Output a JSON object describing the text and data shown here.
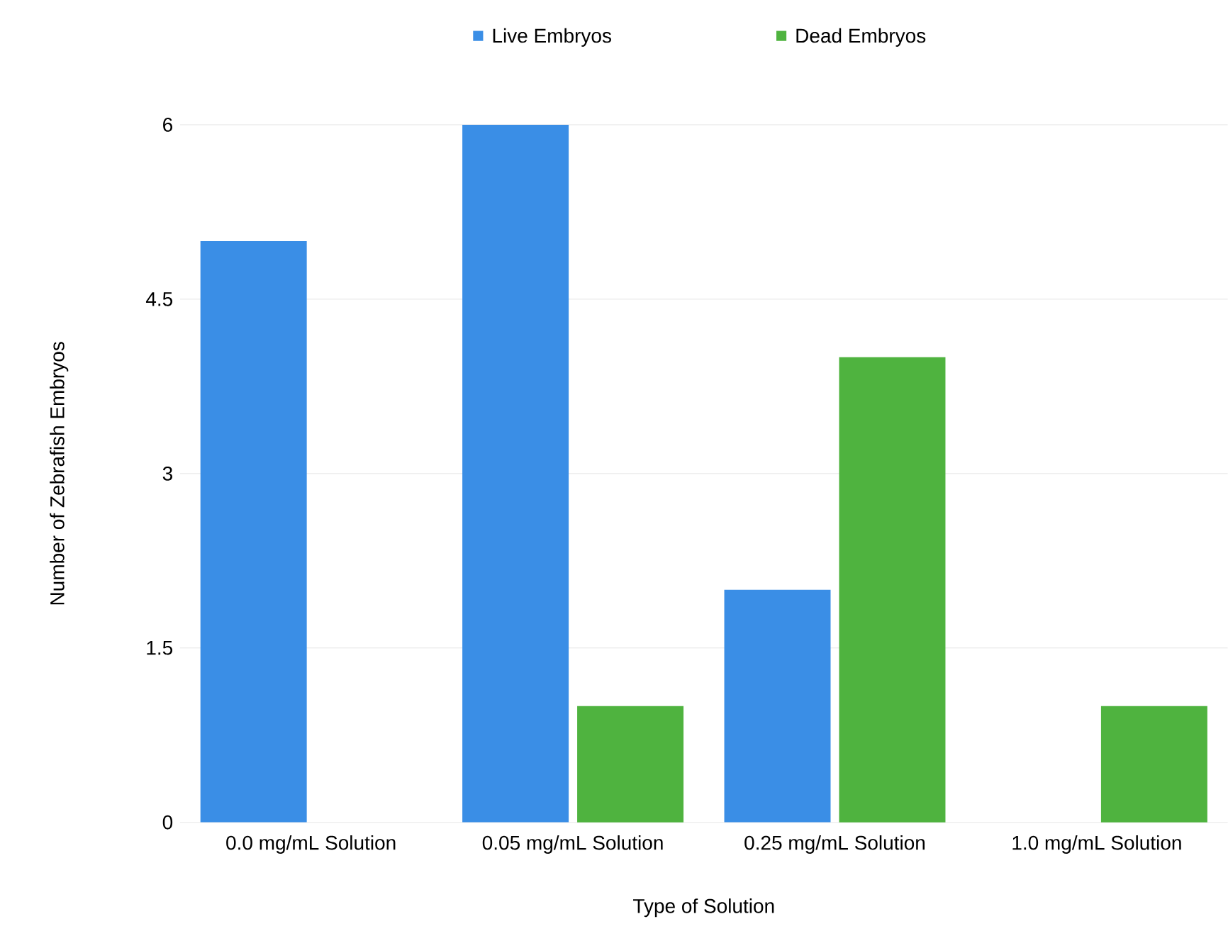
{
  "chart_data": {
    "type": "bar",
    "xlabel": "Type of Solution",
    "ylabel": "Number of Zebrafish Embryos",
    "categories": [
      "0.0 mg/mL Solution",
      "0.05 mg/mL Solution",
      "0.25 mg/mL Solution",
      "1.0 mg/mL Solution"
    ],
    "series": [
      {
        "name": "Live Embryos",
        "color": "#3a8ee6",
        "values": [
          5,
          6,
          2,
          0
        ]
      },
      {
        "name": "Dead Embryos",
        "color": "#4fb33f",
        "values": [
          0,
          1,
          4,
          1
        ]
      }
    ],
    "ylim": [
      0,
      6
    ],
    "yticks": [
      0,
      1.5,
      3,
      4.5,
      6
    ],
    "grid": "y",
    "legend": "top"
  }
}
